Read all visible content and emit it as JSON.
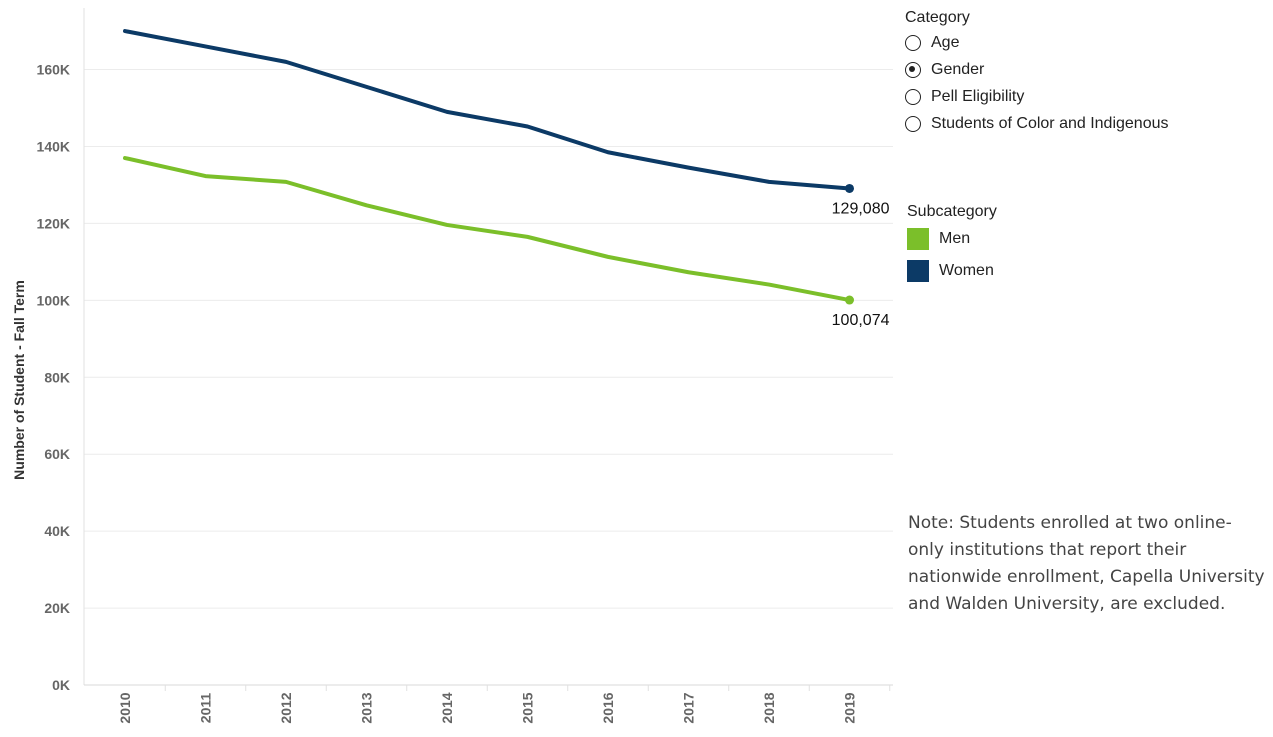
{
  "chart_data": {
    "type": "line",
    "x": [
      "2010",
      "2011",
      "2012",
      "2013",
      "2014",
      "2015",
      "2016",
      "2017",
      "2018",
      "2019"
    ],
    "series": [
      {
        "name": "Women",
        "color": "#0c3a66",
        "values": [
          170000,
          166000,
          162000,
          155500,
          149000,
          145200,
          138500,
          134500,
          130800,
          129080
        ]
      },
      {
        "name": "Men",
        "color": "#7bbf2a",
        "values": [
          137000,
          132300,
          130800,
          124700,
          119600,
          116500,
          111300,
          107300,
          104100,
          100074
        ]
      }
    ],
    "ylabel": "Number of Student - Fall Term",
    "yticks": [
      "0K",
      "20K",
      "40K",
      "60K",
      "80K",
      "100K",
      "120K",
      "140K",
      "160K"
    ],
    "ylim": [
      0,
      176000
    ],
    "grid": true,
    "end_labels": {
      "Women": "129,080",
      "Men": "100,074"
    }
  },
  "category_filter": {
    "title": "Category",
    "options": [
      {
        "label": "Age",
        "selected": false
      },
      {
        "label": "Gender",
        "selected": true
      },
      {
        "label": "Pell Eligibility",
        "selected": false
      },
      {
        "label": "Students of Color and Indigenous",
        "selected": false
      }
    ]
  },
  "subcategory_legend": {
    "title": "Subcategory",
    "items": [
      {
        "label": "Men",
        "color": "#7bbf2a"
      },
      {
        "label": "Women",
        "color": "#0c3a66"
      }
    ]
  },
  "note": "Note: Students enrolled at two online-only institutions that report their nationwide enrollment, Capella University and Walden University, are excluded."
}
